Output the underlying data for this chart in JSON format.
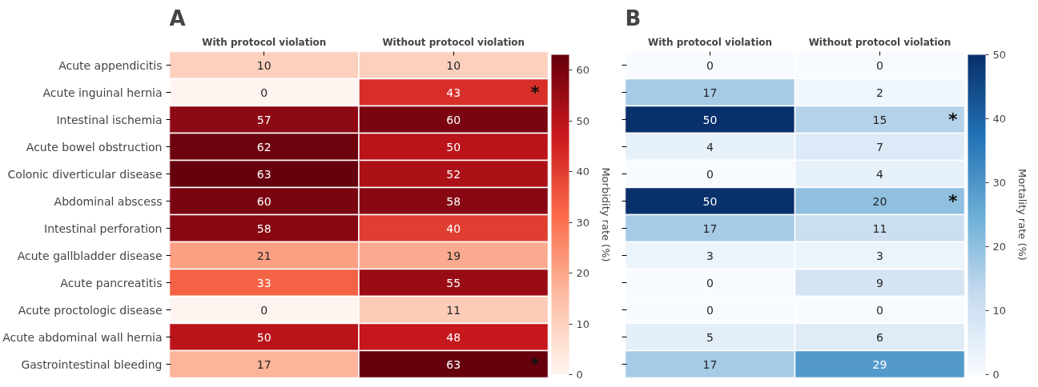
{
  "chart_data": [
    {
      "type": "heatmap",
      "title": "A",
      "categories": [
        "With protocol violation",
        "Without protocol violation"
      ],
      "y_categories": [
        "Acute appendicitis",
        "Acute inguinal hernia",
        "Intestinal ischemia",
        "Acute bowel obstruction",
        "Colonic diverticular disease",
        "Abdominal abscess",
        "Intestinal perforation",
        "Acute gallbladder disease",
        "Acute pancreatitis",
        "Acute proctologic disease",
        "Acute abdominal wall hernia",
        "Gastrointestinal bleeding"
      ],
      "cells": [
        [
          10,
          10
        ],
        [
          0,
          43
        ],
        [
          57,
          60
        ],
        [
          62,
          50
        ],
        [
          63,
          52
        ],
        [
          60,
          58
        ],
        [
          58,
          40
        ],
        [
          21,
          19
        ],
        [
          33,
          55
        ],
        [
          0,
          11
        ],
        [
          50,
          48
        ],
        [
          17,
          63
        ]
      ],
      "cell_labels": [
        [
          "10",
          "10"
        ],
        [
          "0",
          "43 *"
        ],
        [
          "57",
          "60"
        ],
        [
          "62",
          "50"
        ],
        [
          "63",
          "52"
        ],
        [
          "60",
          "58"
        ],
        [
          "58",
          "40"
        ],
        [
          "21",
          "19"
        ],
        [
          "33",
          "55"
        ],
        [
          "0",
          "11"
        ],
        [
          "50",
          "48"
        ],
        [
          "17",
          "63 *"
        ]
      ],
      "data_labels": true,
      "clabel": "Morbidity rate (%)",
      "clim": [
        0,
        63
      ],
      "cticks": [
        0,
        10,
        20,
        30,
        40,
        50,
        60
      ],
      "colors": [
        "#fff5f0",
        "#fcbba1",
        "#fb6a4a",
        "#cb181d",
        "#67000d"
      ]
    },
    {
      "type": "heatmap",
      "title": "B",
      "categories": [
        "With protocol violation",
        "Without protocol violation"
      ],
      "y_categories": [
        null,
        null,
        null,
        null,
        null,
        null,
        null,
        null,
        null,
        null,
        null,
        null
      ],
      "cells": [
        [
          0,
          0
        ],
        [
          17,
          2
        ],
        [
          50,
          15
        ],
        [
          4,
          7
        ],
        [
          0,
          4
        ],
        [
          50,
          20
        ],
        [
          17,
          11
        ],
        [
          3,
          3
        ],
        [
          0,
          9
        ],
        [
          0,
          0
        ],
        [
          5,
          6
        ],
        [
          17,
          29
        ]
      ],
      "cell_labels": [
        [
          "0",
          "0"
        ],
        [
          "17",
          "2"
        ],
        [
          "50",
          "15 *"
        ],
        [
          "4",
          "7"
        ],
        [
          "0",
          "4"
        ],
        [
          "50",
          "20 *"
        ],
        [
          "17",
          "11"
        ],
        [
          "3",
          "3"
        ],
        [
          "0",
          "9"
        ],
        [
          "0",
          "0"
        ],
        [
          "5",
          "6"
        ],
        [
          "17",
          "29"
        ]
      ],
      "data_labels": true,
      "clabel": "Mortality rate (%)",
      "clim": [
        0,
        50
      ],
      "cticks": [
        0,
        10,
        20,
        30,
        40,
        50
      ],
      "colors": [
        "#f7fbff",
        "#c6dbef",
        "#6baed6",
        "#2171b5",
        "#08306b"
      ]
    }
  ]
}
